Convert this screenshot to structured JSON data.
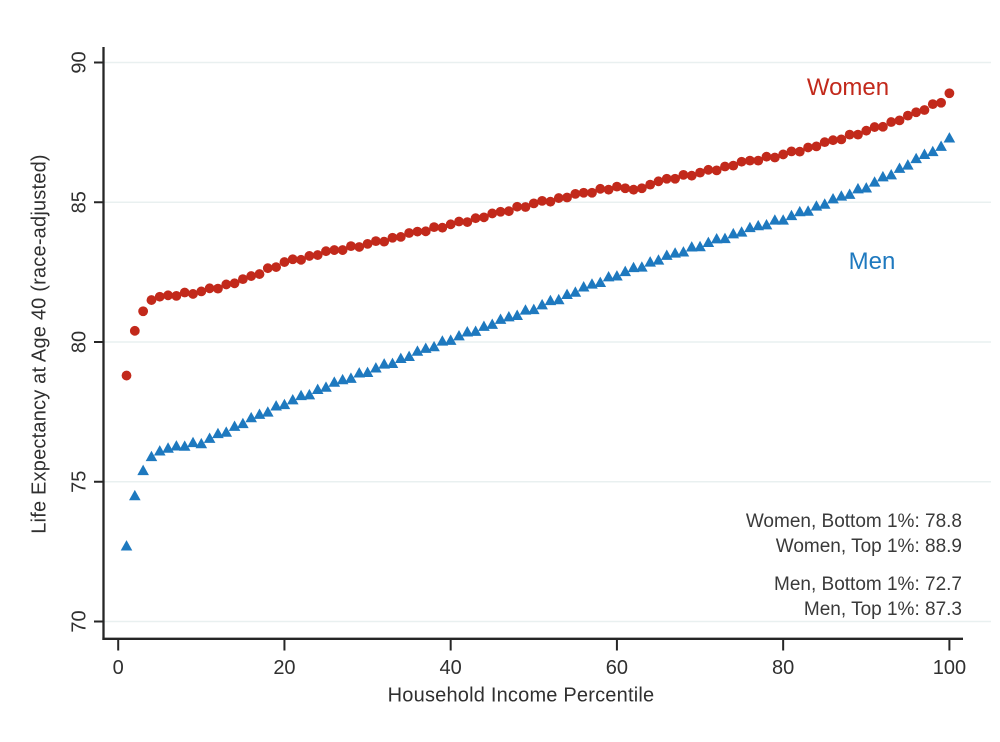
{
  "chart_data": {
    "type": "scatter",
    "title": "",
    "xlabel": "Household Income Percentile",
    "ylabel": "Life Expectancy at Age 40 (race-adjusted)",
    "x_ticks": [
      0,
      20,
      40,
      60,
      80,
      100
    ],
    "y_ticks": [
      70,
      75,
      80,
      85,
      90
    ],
    "xlim": [
      -2,
      102
    ],
    "ylim": [
      69.4,
      90.5
    ],
    "grid": "horizontal-gridlines-only",
    "legend_position": "in-plot text labels",
    "x_note": "x value for each point is the household income percentile, 1 through 100 (array index + 1)",
    "series": [
      {
        "name": "Women",
        "marker": "circle",
        "color": "#C2291B",
        "values": [
          78.8,
          80.4,
          81.1,
          81.5,
          81.62,
          81.67,
          81.65,
          81.77,
          81.72,
          81.81,
          81.92,
          81.91,
          82.06,
          82.1,
          82.25,
          82.36,
          82.43,
          82.64,
          82.68,
          82.86,
          82.96,
          82.94,
          83.08,
          83.11,
          83.25,
          83.29,
          83.29,
          83.43,
          83.4,
          83.51,
          83.61,
          83.59,
          83.73,
          83.76,
          83.9,
          83.95,
          83.96,
          84.11,
          84.09,
          84.21,
          84.31,
          84.29,
          84.43,
          84.46,
          84.6,
          84.66,
          84.68,
          84.84,
          84.83,
          84.96,
          85.05,
          85.02,
          85.15,
          85.17,
          85.3,
          85.34,
          85.34,
          85.48,
          85.45,
          85.56,
          85.5,
          85.45,
          85.5,
          85.63,
          85.75,
          85.84,
          85.84,
          85.98,
          85.95,
          86.06,
          86.16,
          86.14,
          86.28,
          86.31,
          86.45,
          86.49,
          86.49,
          86.63,
          86.6,
          86.71,
          86.82,
          86.81,
          86.96,
          87.0,
          87.15,
          87.22,
          87.25,
          87.42,
          87.42,
          87.56,
          87.69,
          87.7,
          87.87,
          87.93,
          88.1,
          88.22,
          88.3,
          88.51,
          88.56,
          88.9
        ]
      },
      {
        "name": "Men",
        "marker": "triangle",
        "color": "#1E79BF",
        "values": [
          72.7,
          74.5,
          75.4,
          75.9,
          76.1,
          76.2,
          76.28,
          76.27,
          76.4,
          76.36,
          76.55,
          76.72,
          76.77,
          76.98,
          77.08,
          77.29,
          77.41,
          77.49,
          77.71,
          77.76,
          77.93,
          78.08,
          78.11,
          78.3,
          78.38,
          78.56,
          78.65,
          78.7,
          78.89,
          78.91,
          79.07,
          79.21,
          79.23,
          79.41,
          79.48,
          79.67,
          79.77,
          79.83,
          80.03,
          80.06,
          80.22,
          80.36,
          80.38,
          80.56,
          80.63,
          80.81,
          80.9,
          80.95,
          81.14,
          81.16,
          81.33,
          81.48,
          81.51,
          81.7,
          81.78,
          81.97,
          82.07,
          82.13,
          82.33,
          82.36,
          82.52,
          82.66,
          82.68,
          82.86,
          82.93,
          83.1,
          83.18,
          83.22,
          83.4,
          83.41,
          83.56,
          83.69,
          83.7,
          83.87,
          83.93,
          84.09,
          84.16,
          84.19,
          84.36,
          84.36,
          84.52,
          84.66,
          84.68,
          84.86,
          84.93,
          85.12,
          85.22,
          85.28,
          85.48,
          85.51,
          85.72,
          85.91,
          85.98,
          86.21,
          86.33,
          86.56,
          86.71,
          86.81,
          87.0,
          87.3
        ]
      }
    ],
    "annotations": [
      "Women, Bottom 1%: 78.8",
      "Women, Top 1%: 88.9",
      "Men, Bottom 1%: 72.7",
      "Men, Top 1%: 87.3"
    ],
    "summary_stats": {
      "women_bottom_1pct": 78.8,
      "women_top_1pct": 88.9,
      "men_bottom_1pct": 72.7,
      "men_top_1pct": 87.3
    }
  },
  "colors": {
    "women": "#C2291B",
    "men": "#1E79BF",
    "grid": "#E9F0F0",
    "axis": "#262626",
    "tick_text": "#303030",
    "annotation_text": "#3A3A3A",
    "background": "#FFFFFF"
  }
}
